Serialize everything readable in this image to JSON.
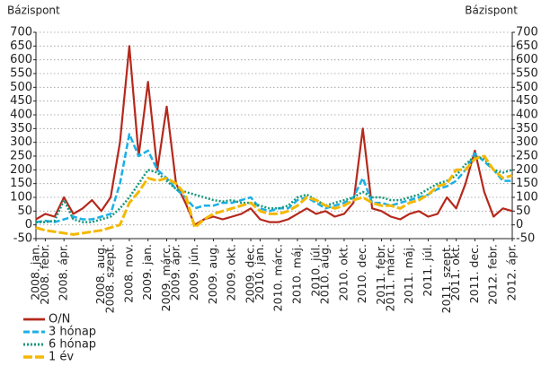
{
  "chart_data": {
    "type": "line",
    "y_label": "Bázispont",
    "y2_label": "Bázispont",
    "categories": [
      "2008. jan.",
      "2008. febr.",
      null,
      "2008. ápr.",
      null,
      null,
      null,
      "2008. aug.",
      "2008. szept.",
      null,
      "2008. nov.",
      null,
      "2009. jan.",
      null,
      "2009. márc.",
      "2009. ápr.",
      null,
      "2009. jún.",
      null,
      "2009. aug.",
      null,
      "2009. okt.",
      null,
      "2009. dec.",
      "2010. jan.",
      null,
      "2010. márc.",
      null,
      "2010. máj.",
      null,
      "2010. júl.",
      "2010. aug.",
      null,
      "2010. okt.",
      null,
      "2010. dec.",
      null,
      "2011. febr.",
      "2011. márc.",
      null,
      "2011. máj.",
      null,
      "2011. júl.",
      null,
      "2011. szept.",
      "2011. okt.",
      null,
      "2011. dec.",
      null,
      "2012. febr.",
      null,
      "2012. ápr."
    ],
    "series": [
      {
        "name": "O/N",
        "color": "#b5291c",
        "dash": "solid",
        "values": [
          20,
          40,
          30,
          100,
          40,
          60,
          90,
          50,
          100,
          300,
          650,
          250,
          520,
          200,
          430,
          150,
          80,
          0,
          20,
          30,
          20,
          30,
          40,
          60,
          20,
          10,
          10,
          20,
          40,
          60,
          40,
          50,
          30,
          40,
          80,
          350,
          60,
          50,
          30,
          20,
          40,
          50,
          30,
          40,
          100,
          60,
          150,
          270,
          120,
          30,
          60,
          50
        ]
      },
      {
        "name": "3 hónap",
        "color": "#1bb0e6",
        "dash": "dashed",
        "values": [
          10,
          15,
          10,
          20,
          30,
          20,
          20,
          30,
          40,
          150,
          330,
          250,
          270,
          200,
          170,
          130,
          100,
          60,
          70,
          70,
          80,
          80,
          90,
          100,
          60,
          50,
          60,
          60,
          90,
          100,
          80,
          60,
          70,
          80,
          100,
          170,
          80,
          80,
          70,
          80,
          90,
          100,
          110,
          130,
          140,
          160,
          200,
          260,
          230,
          200,
          160,
          160
        ]
      },
      {
        "name": "6 hónap",
        "color": "#17977b",
        "dash": "dotted",
        "values": [
          10,
          10,
          15,
          90,
          20,
          10,
          10,
          20,
          30,
          60,
          100,
          150,
          200,
          190,
          160,
          130,
          120,
          110,
          100,
          90,
          85,
          90,
          80,
          80,
          70,
          60,
          60,
          70,
          100,
          110,
          90,
          70,
          80,
          90,
          100,
          120,
          100,
          100,
          90,
          90,
          100,
          110,
          130,
          150,
          160,
          180,
          220,
          250,
          240,
          200,
          190,
          200
        ]
      },
      {
        "name": "1 év",
        "color": "#f4b800",
        "dash": "longdash",
        "values": [
          -10,
          -20,
          -25,
          -30,
          -35,
          -30,
          -25,
          -20,
          -10,
          0,
          80,
          120,
          170,
          160,
          170,
          150,
          110,
          -10,
          20,
          40,
          50,
          60,
          70,
          80,
          50,
          40,
          40,
          50,
          70,
          100,
          90,
          70,
          60,
          70,
          90,
          100,
          80,
          70,
          70,
          60,
          80,
          90,
          110,
          140,
          150,
          200,
          200,
          240,
          250,
          200,
          170,
          180
        ]
      }
    ],
    "ylim": [
      -50,
      700
    ],
    "yticks": [
      -50,
      0,
      50,
      100,
      150,
      200,
      250,
      300,
      350,
      400,
      450,
      500,
      550,
      600,
      650,
      700
    ],
    "y2lim": [
      -50,
      700
    ],
    "y2ticks": [
      -50,
      0,
      50,
      100,
      150,
      200,
      250,
      300,
      350,
      400,
      450,
      500,
      550,
      600,
      650,
      700
    ],
    "grid": true
  }
}
